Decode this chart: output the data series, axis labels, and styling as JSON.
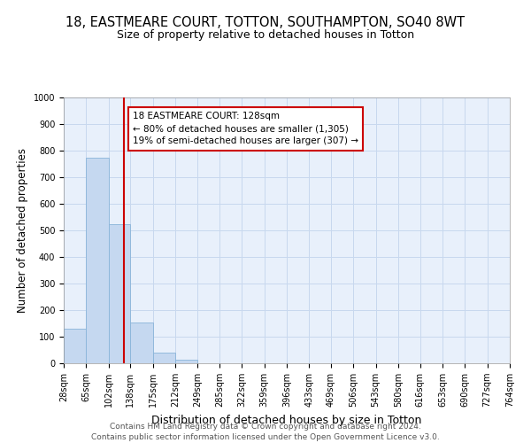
{
  "title": "18, EASTMEARE COURT, TOTTON, SOUTHAMPTON, SO40 8WT",
  "subtitle": "Size of property relative to detached houses in Totton",
  "xlabel": "Distribution of detached houses by size in Totton",
  "ylabel": "Number of detached properties",
  "bar_color": "#c5d8f0",
  "bar_edge_color": "#89b4d9",
  "bin_edges": [
    28,
    65,
    102,
    138,
    175,
    212,
    249,
    285,
    322,
    359,
    396,
    433,
    469,
    506,
    543,
    580,
    616,
    653,
    690,
    727,
    764
  ],
  "bar_heights": [
    130,
    775,
    525,
    155,
    40,
    12,
    0,
    0,
    0,
    0,
    0,
    0,
    0,
    0,
    0,
    0,
    0,
    0,
    0,
    0
  ],
  "property_size": 128,
  "vline_color": "#cc0000",
  "annotation_line1": "18 EASTMEARE COURT: 128sqm",
  "annotation_line2": "← 80% of detached houses are smaller (1,305)",
  "annotation_line3": "19% of semi-detached houses are larger (307) →",
  "annotation_box_color": "#cc0000",
  "annotation_box_fill": "#ffffff",
  "ylim": [
    0,
    1000
  ],
  "yticks": [
    0,
    100,
    200,
    300,
    400,
    500,
    600,
    700,
    800,
    900,
    1000
  ],
  "grid_color": "#c8d8ee",
  "background_color": "#e8f0fb",
  "footer_text": "Contains HM Land Registry data © Crown copyright and database right 2024.\nContains public sector information licensed under the Open Government Licence v3.0.",
  "title_fontsize": 10.5,
  "subtitle_fontsize": 9,
  "xlabel_fontsize": 9,
  "ylabel_fontsize": 8.5,
  "tick_fontsize": 7,
  "footer_fontsize": 6.5
}
